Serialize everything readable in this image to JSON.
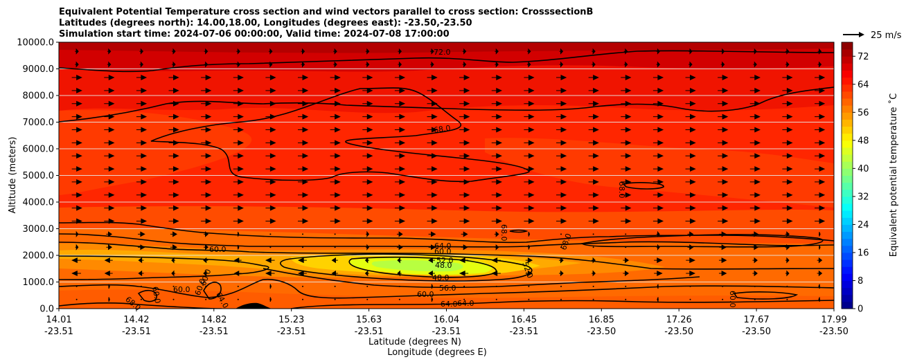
{
  "chart_data": {
    "type": "contour",
    "title_lines": [
      "Equivalent Potential Temperature cross section and wind vectors parallel to cross section: CrosssectionB",
      "Latitudes (degrees north): 14.00,18.00, Longitudes (degrees east): -23.50,-23.50",
      "Simulation start time: 2024-07-06 00:00:00, Valid time: 2024-07-08 17:00:00"
    ],
    "ylabel": "Altitude (meters)",
    "xlabel_lat": "Latitude (degrees N)",
    "xlabel_lon": "Longitude (degrees E)",
    "ylim": [
      0,
      10000
    ],
    "y_ticks": [
      "0.0",
      "1000.0",
      "2000.0",
      "3000.0",
      "4000.0",
      "5000.0",
      "6000.0",
      "7000.0",
      "8000.0",
      "9000.0",
      "10000.0"
    ],
    "x_ticks_lat": [
      "14.01",
      "14.42",
      "14.82",
      "15.23",
      "15.63",
      "16.04",
      "16.45",
      "16.85",
      "17.26",
      "17.67",
      "17.99"
    ],
    "x_ticks_lon": [
      "-23.51",
      "-23.51",
      "-23.51",
      "-23.51",
      "-23.51",
      "-23.51",
      "-23.51",
      "-23.50",
      "-23.50",
      "-23.50",
      "-23.50"
    ],
    "colorbar": {
      "label": "Equivalent potential temperature ˚C",
      "min": 0,
      "max": 76,
      "ticks": [
        "0",
        "8",
        "16",
        "24",
        "32",
        "40",
        "48",
        "56",
        "64",
        "72"
      ],
      "colormap": "jet"
    },
    "quiver_key": {
      "label": "25 m/s",
      "speed": 25
    },
    "contour_labels": [
      "72.0",
      "68.0",
      "68.0",
      "68.0",
      "68.0",
      "64.0",
      "60.0",
      "52.0",
      "48.0",
      "48.0",
      "56.0",
      "60.0",
      "64.0",
      "64.0",
      "60.0",
      "60.0",
      "52.0",
      "68.0",
      "60.0",
      "60.0",
      "60.0",
      "64.0",
      "68.0"
    ],
    "field_summary": "Theta-e ~72 above 9000 m, 64-68 in mid troposphere, minimum ~46-48 near 1500 m between 15.6 and 16.3 N, 60-64 near surface"
  }
}
